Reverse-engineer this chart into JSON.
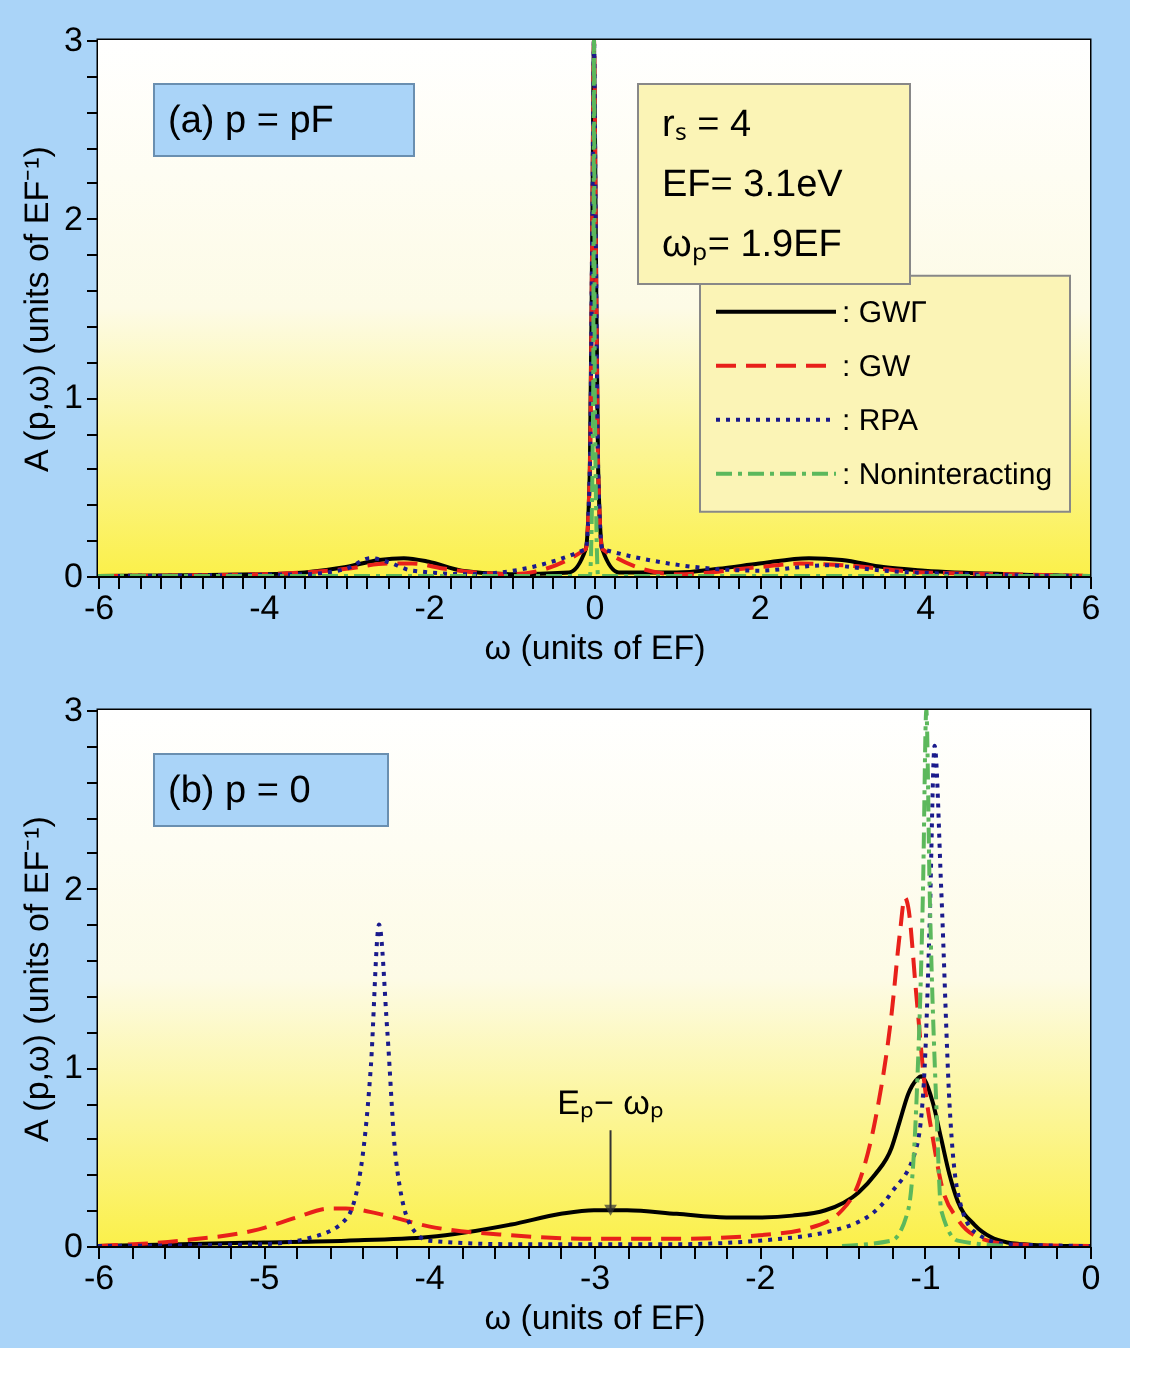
{
  "chart_data": [
    {
      "type": "line",
      "xlabel": "ω (units of EF)",
      "ylabel": "A (p,ω)  (units of EF⁻¹)",
      "xlim": [
        -6,
        6
      ],
      "ylim": [
        0,
        3
      ],
      "xticks": [
        -6,
        {
          "value": -5.75,
          "label": null
        },
        {
          "value": -5.5,
          "label": null
        },
        {
          "value": -5.25,
          "label": null
        },
        {
          "value": -5,
          "label": null
        },
        {
          "value": -4.75,
          "label": null
        },
        {
          "value": -4.5,
          "label": null
        },
        {
          "value": -4.25,
          "label": null
        },
        -4,
        {
          "value": -3.75,
          "label": null
        },
        {
          "value": -3.5,
          "label": null
        },
        {
          "value": -3.25,
          "label": null
        },
        {
          "value": -3,
          "label": null
        },
        {
          "value": -2.75,
          "label": null
        },
        {
          "value": -2.5,
          "label": null
        },
        {
          "value": -2.25,
          "label": null
        },
        -2,
        {
          "value": -1.75,
          "label": null
        },
        {
          "value": -1.5,
          "label": null
        },
        {
          "value": -1.25,
          "label": null
        },
        {
          "value": -1,
          "label": null
        },
        {
          "value": -0.75,
          "label": null
        },
        {
          "value": -0.5,
          "label": null
        },
        {
          "value": -0.25,
          "label": null
        },
        0,
        {
          "value": 0.25,
          "label": null
        },
        {
          "value": 0.5,
          "label": null
        },
        {
          "value": 0.75,
          "label": null
        },
        {
          "value": 1,
          "label": null
        },
        {
          "value": 1.25,
          "label": null
        },
        {
          "value": 1.5,
          "label": null
        },
        {
          "value": 1.75,
          "label": null
        },
        2,
        {
          "value": 2.25,
          "label": null
        },
        {
          "value": 2.5,
          "label": null
        },
        {
          "value": 2.75,
          "label": null
        },
        {
          "value": 3,
          "label": null
        },
        {
          "value": 3.25,
          "label": null
        },
        {
          "value": 3.5,
          "label": null
        },
        {
          "value": 3.75,
          "label": null
        },
        4,
        {
          "value": 4.25,
          "label": null
        },
        {
          "value": 4.5,
          "label": null
        },
        {
          "value": 4.75,
          "label": null
        },
        {
          "value": 5,
          "label": null
        },
        {
          "value": 5.25,
          "label": null
        },
        {
          "value": 5.5,
          "label": null
        },
        {
          "value": 5.75,
          "label": null
        },
        6
      ],
      "yticks": [
        0,
        {
          "value": 0.2,
          "label": null
        },
        {
          "value": 0.4,
          "label": null
        },
        {
          "value": 0.6,
          "label": null
        },
        {
          "value": 0.8,
          "label": null
        },
        1,
        {
          "value": 1.2,
          "label": null
        },
        {
          "value": 1.4,
          "label": null
        },
        {
          "value": 1.6,
          "label": null
        },
        {
          "value": 1.8,
          "label": null
        },
        2,
        {
          "value": 2.2,
          "label": null
        },
        {
          "value": 2.4,
          "label": null
        },
        {
          "value": 2.6,
          "label": null
        },
        {
          "value": 2.8,
          "label": null
        },
        3
      ],
      "grid": false,
      "legend": "right",
      "annotations": [
        "(a) p = pF",
        "rₛ = 4",
        "EF= 3.1eV",
        "ωₚ= 1.9EF"
      ],
      "series": [
        {
          "name": ": GWΓ",
          "color": "#000000",
          "line_style": "solid",
          "x": [
            -6,
            -4,
            -3.5,
            -3,
            -2.6,
            -2.3,
            -2,
            -1.6,
            -1,
            -0.3,
            -0.1,
            -0.05,
            -0.02,
            0,
            0.02,
            0.05,
            0.1,
            0.3,
            1,
            1.5,
            2,
            2.6,
            3,
            3.5,
            4,
            5,
            6
          ],
          "values": [
            0,
            0.01,
            0.02,
            0.05,
            0.09,
            0.1,
            0.08,
            0.03,
            0.01,
            0.02,
            0.15,
            0.6,
            2.0,
            3.0,
            2.0,
            0.6,
            0.15,
            0.02,
            0.02,
            0.04,
            0.07,
            0.1,
            0.09,
            0.05,
            0.03,
            0.01,
            0
          ]
        },
        {
          "name": ": GW",
          "color": "#e8201a",
          "line_style": "dashed",
          "x": [
            -6,
            -4,
            -3,
            -2.5,
            -2.2,
            -1.8,
            -1,
            -0.1,
            -0.05,
            -0.02,
            0,
            0.02,
            0.05,
            0.1,
            1,
            2,
            2.5,
            3,
            4,
            5,
            6
          ],
          "values": [
            0,
            0.01,
            0.04,
            0.07,
            0.07,
            0.04,
            0.01,
            0.15,
            0.6,
            2.0,
            3.0,
            2.0,
            0.6,
            0.15,
            0.01,
            0.05,
            0.07,
            0.06,
            0.02,
            0.01,
            0
          ]
        },
        {
          "name": ": RPA",
          "color": "#1a1a8c",
          "line_style": "dotted",
          "x": [
            -6,
            -3.5,
            -3,
            -2.7,
            -2.5,
            -2.2,
            -1.5,
            -0.1,
            -0.05,
            -0.02,
            0,
            0.02,
            0.05,
            0.1,
            2,
            2.8,
            3.5,
            4.5,
            6
          ],
          "values": [
            0,
            0.01,
            0.04,
            0.1,
            0.08,
            0.03,
            0.01,
            0.15,
            0.6,
            2.0,
            3.0,
            2.0,
            0.6,
            0.15,
            0.03,
            0.06,
            0.03,
            0.01,
            0
          ]
        },
        {
          "name": ": Noninteracting",
          "color": "#5cb85c",
          "line_style": "dashdot",
          "x": [
            -6,
            -0.05,
            -0.01,
            0,
            0.01,
            0.05,
            6
          ],
          "values": [
            0,
            0,
            1.0,
            3.0,
            1.0,
            0,
            0
          ]
        }
      ]
    },
    {
      "type": "line",
      "xlabel": "ω (units of EF)",
      "ylabel": "A (p,ω)  (units of EF⁻¹)",
      "xlim": [
        -6,
        0
      ],
      "ylim": [
        0,
        3
      ],
      "xticks": [
        -6,
        {
          "value": -5.8,
          "label": null
        },
        {
          "value": -5.6,
          "label": null
        },
        {
          "value": -5.4,
          "label": null
        },
        {
          "value": -5.2,
          "label": null
        },
        -5,
        {
          "value": -4.8,
          "label": null
        },
        {
          "value": -4.6,
          "label": null
        },
        {
          "value": -4.4,
          "label": null
        },
        {
          "value": -4.2,
          "label": null
        },
        -4,
        {
          "value": -3.8,
          "label": null
        },
        {
          "value": -3.6,
          "label": null
        },
        {
          "value": -3.4,
          "label": null
        },
        {
          "value": -3.2,
          "label": null
        },
        -3,
        {
          "value": -2.8,
          "label": null
        },
        {
          "value": -2.6,
          "label": null
        },
        {
          "value": -2.4,
          "label": null
        },
        {
          "value": -2.2,
          "label": null
        },
        -2,
        {
          "value": -1.8,
          "label": null
        },
        {
          "value": -1.6,
          "label": null
        },
        {
          "value": -1.4,
          "label": null
        },
        {
          "value": -1.2,
          "label": null
        },
        -1,
        {
          "value": -0.8,
          "label": null
        },
        {
          "value": -0.6,
          "label": null
        },
        {
          "value": -0.4,
          "label": null
        },
        {
          "value": -0.2,
          "label": null
        },
        0
      ],
      "yticks": [
        0,
        {
          "value": 0.2,
          "label": null
        },
        {
          "value": 0.4,
          "label": null
        },
        {
          "value": 0.6,
          "label": null
        },
        {
          "value": 0.8,
          "label": null
        },
        1,
        {
          "value": 1.2,
          "label": null
        },
        {
          "value": 1.4,
          "label": null
        },
        {
          "value": 1.6,
          "label": null
        },
        {
          "value": 1.8,
          "label": null
        },
        2,
        {
          "value": 2.2,
          "label": null
        },
        {
          "value": 2.4,
          "label": null
        },
        {
          "value": 2.6,
          "label": null
        },
        {
          "value": 2.8,
          "label": null
        },
        3
      ],
      "grid": false,
      "legend": false,
      "annotations": [
        "(b) p = 0",
        {
          "text": "Eₚ− ωₚ",
          "x": -2.9,
          "y": 0.2
        }
      ],
      "series": [
        {
          "color": "#000000",
          "line_style": "solid",
          "x": [
            -6,
            -5.5,
            -5,
            -4.5,
            -4,
            -3.5,
            -3.2,
            -3,
            -2.8,
            -2.5,
            -2.2,
            -2,
            -1.8,
            -1.6,
            -1.4,
            -1.3,
            -1.2,
            -1.15,
            -1.1,
            -1.05,
            -1.02,
            -1,
            -0.95,
            -0.9,
            -0.85,
            -0.8,
            -0.7,
            -0.6,
            -0.5,
            -0.4,
            -0.2,
            0
          ],
          "values": [
            0,
            0.01,
            0.02,
            0.03,
            0.05,
            0.12,
            0.18,
            0.2,
            0.2,
            0.18,
            0.16,
            0.16,
            0.17,
            0.2,
            0.3,
            0.4,
            0.55,
            0.7,
            0.85,
            0.93,
            0.95,
            0.93,
            0.8,
            0.6,
            0.4,
            0.25,
            0.12,
            0.05,
            0.02,
            0.01,
            0,
            0
          ]
        },
        {
          "color": "#e8201a",
          "line_style": "dashed",
          "x": [
            -6,
            -5.5,
            -5,
            -4.8,
            -4.6,
            -4.5,
            -4.3,
            -4,
            -3.5,
            -3,
            -2.5,
            -2,
            -1.7,
            -1.5,
            -1.4,
            -1.3,
            -1.2,
            -1.15,
            -1.12,
            -1.1,
            -1.05,
            -1,
            -0.95,
            -0.9,
            -0.8,
            -0.7,
            -0.5,
            0
          ],
          "values": [
            0,
            0.03,
            0.1,
            0.16,
            0.21,
            0.21,
            0.18,
            0.11,
            0.06,
            0.04,
            0.04,
            0.06,
            0.1,
            0.2,
            0.35,
            0.7,
            1.3,
            1.75,
            1.95,
            1.9,
            1.4,
            0.9,
            0.6,
            0.35,
            0.15,
            0.06,
            0.01,
            0
          ]
        },
        {
          "color": "#1a1a8c",
          "line_style": "dotted",
          "x": [
            -6,
            -5,
            -4.7,
            -4.5,
            -4.4,
            -4.35,
            -4.3,
            -4.25,
            -4.2,
            -4.1,
            -4,
            -3.5,
            -2.5,
            -2,
            -1.5,
            -1.2,
            -1.05,
            -1,
            -0.97,
            -0.94,
            -0.9,
            -0.85,
            -0.8,
            -0.7,
            -0.5,
            0
          ],
          "values": [
            0,
            0.01,
            0.05,
            0.15,
            0.5,
            1.0,
            1.8,
            1.2,
            0.5,
            0.1,
            0.03,
            0.01,
            0.01,
            0.03,
            0.1,
            0.3,
            0.55,
            1.0,
            1.8,
            2.8,
            2.0,
            0.8,
            0.3,
            0.08,
            0.01,
            0
          ]
        },
        {
          "color": "#5cb85c",
          "line_style": "dashdot",
          "x": [
            -1.5,
            -1.2,
            -1.1,
            -1.05,
            -1.01,
            -0.99,
            -0.97,
            -0.93,
            -0.9,
            -0.8,
            -0.5
          ],
          "values": [
            0,
            0.03,
            0.2,
            0.8,
            2.0,
            3.0,
            2.0,
            0.8,
            0.2,
            0.03,
            0
          ]
        }
      ]
    }
  ]
}
